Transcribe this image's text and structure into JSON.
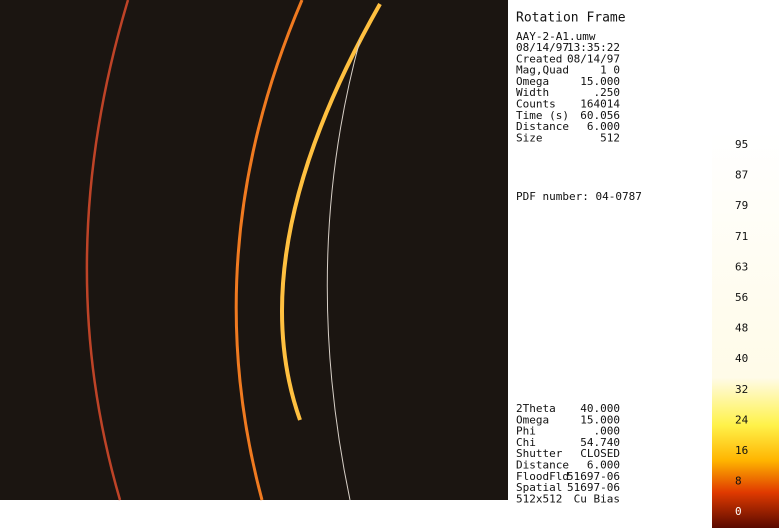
{
  "header": {
    "title": "Rotation Frame"
  },
  "file": "AAY-2-A1.umw",
  "frame_info": [
    [
      "08/14/97",
      "13:35:22"
    ],
    [
      "Created",
      "08/14/97"
    ],
    [
      "Mag,Quad",
      "1    0"
    ],
    [
      "Omega",
      "15.000"
    ],
    [
      "Width",
      ".250"
    ],
    [
      "Counts",
      "164014"
    ],
    [
      "Time (s)",
      "60.056"
    ],
    [
      "Distance",
      "6.000"
    ],
    [
      "Size",
      "512"
    ]
  ],
  "pdf": "PDF number: 04-0787",
  "goniometer": [
    [
      "2Theta",
      "40.000"
    ],
    [
      "Omega",
      "15.000"
    ],
    [
      "Phi",
      ".000"
    ],
    [
      "Chi",
      "54.740"
    ],
    [
      "Shutter",
      "CLOSED"
    ],
    [
      "Distance",
      "6.000"
    ],
    [
      "FloodFld",
      "51697-06"
    ],
    [
      "Spatial",
      "51697-06"
    ],
    [
      "512x512",
      "Cu Bias"
    ]
  ],
  "scale": [
    95,
    87,
    79,
    71,
    63,
    56,
    48,
    40,
    32,
    24,
    16,
    8,
    0
  ]
}
